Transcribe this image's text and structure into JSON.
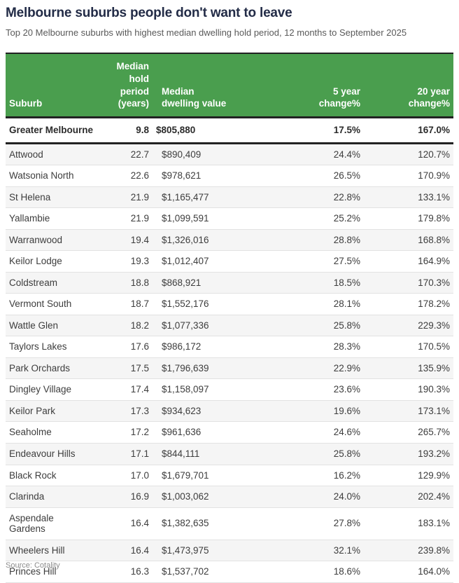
{
  "page": {
    "title": "Melbourne suburbs people don't want to leave",
    "subtitle": "Top 20 Melbourne suburbs with highest median dwelling hold period, 12 months to September 2025",
    "source": "Source: Cotality"
  },
  "colors": {
    "header_bg": "#4a9e4e",
    "header_text": "#ffffff",
    "title_text": "#232c47",
    "dark_rule": "#222222",
    "zebra_row_bg": "#f5f5f5",
    "row_separator": "#e2e2e2"
  },
  "table": {
    "headers": [
      "Suburb",
      "Median hold\nperiod\n(years)",
      "Median\ndwelling value",
      "5 year\nchange%",
      "20 year\nchange%"
    ],
    "summary": {
      "suburb": "Greater Melbourne",
      "hold": "9.8",
      "value": "$805,880",
      "change5": "17.5%",
      "change20": "167.0%"
    },
    "rows": [
      {
        "suburb": "Attwood",
        "hold": "22.7",
        "value": "$890,409",
        "change5": "24.4%",
        "change20": "120.7%"
      },
      {
        "suburb": "Watsonia North",
        "hold": "22.6",
        "value": "$978,621",
        "change5": "26.5%",
        "change20": "170.9%"
      },
      {
        "suburb": "St Helena",
        "hold": "21.9",
        "value": "$1,165,477",
        "change5": "22.8%",
        "change20": "133.1%"
      },
      {
        "suburb": "Yallambie",
        "hold": "21.9",
        "value": "$1,099,591",
        "change5": "25.2%",
        "change20": "179.8%"
      },
      {
        "suburb": "Warranwood",
        "hold": "19.4",
        "value": "$1,326,016",
        "change5": "28.8%",
        "change20": "168.8%"
      },
      {
        "suburb": "Keilor Lodge",
        "hold": "19.3",
        "value": "$1,012,407",
        "change5": "27.5%",
        "change20": "164.9%"
      },
      {
        "suburb": "Coldstream",
        "hold": "18.8",
        "value": "$868,921",
        "change5": "18.5%",
        "change20": "170.3%"
      },
      {
        "suburb": "Vermont South",
        "hold": "18.7",
        "value": "$1,552,176",
        "change5": "28.1%",
        "change20": "178.2%"
      },
      {
        "suburb": "Wattle Glen",
        "hold": "18.2",
        "value": "$1,077,336",
        "change5": "25.8%",
        "change20": "229.3%"
      },
      {
        "suburb": "Taylors Lakes",
        "hold": "17.6",
        "value": "$986,172",
        "change5": "28.3%",
        "change20": "170.5%"
      },
      {
        "suburb": "Park Orchards",
        "hold": "17.5",
        "value": "$1,796,639",
        "change5": "22.9%",
        "change20": "135.9%"
      },
      {
        "suburb": "Dingley Village",
        "hold": "17.4",
        "value": "$1,158,097",
        "change5": "23.6%",
        "change20": "190.3%"
      },
      {
        "suburb": "Keilor Park",
        "hold": "17.3",
        "value": "$934,623",
        "change5": "19.6%",
        "change20": "173.1%"
      },
      {
        "suburb": "Seaholme",
        "hold": "17.2",
        "value": "$961,636",
        "change5": "24.6%",
        "change20": "265.7%"
      },
      {
        "suburb": "Endeavour Hills",
        "hold": "17.1",
        "value": "$844,111",
        "change5": "25.8%",
        "change20": "193.2%"
      },
      {
        "suburb": "Black Rock",
        "hold": "17.0",
        "value": "$1,679,701",
        "change5": "16.2%",
        "change20": "129.9%"
      },
      {
        "suburb": "Clarinda",
        "hold": "16.9",
        "value": "$1,003,062",
        "change5": "24.0%",
        "change20": "202.4%"
      },
      {
        "suburb": "Aspendale\nGardens",
        "hold": "16.4",
        "value": "$1,382,635",
        "change5": "27.8%",
        "change20": "183.1%"
      },
      {
        "suburb": "Wheelers Hill",
        "hold": "16.4",
        "value": "$1,473,975",
        "change5": "32.1%",
        "change20": "239.8%"
      },
      {
        "suburb": "Princes Hill",
        "hold": "16.3",
        "value": "$1,537,702",
        "change5": "18.6%",
        "change20": "164.0%"
      }
    ]
  },
  "chart_data": {
    "type": "table",
    "title": "Melbourne suburbs people don't want to leave",
    "subtitle": "Top 20 Melbourne suburbs with highest median dwelling hold period, 12 months to September 2025",
    "columns": [
      "Suburb",
      "Median hold period (years)",
      "Median dwelling value",
      "5 year change%",
      "20 year change%"
    ],
    "rows": [
      [
        "Greater Melbourne",
        9.8,
        805880,
        17.5,
        167.0
      ],
      [
        "Attwood",
        22.7,
        890409,
        24.4,
        120.7
      ],
      [
        "Watsonia North",
        22.6,
        978621,
        26.5,
        170.9
      ],
      [
        "St Helena",
        21.9,
        1165477,
        22.8,
        133.1
      ],
      [
        "Yallambie",
        21.9,
        1099591,
        25.2,
        179.8
      ],
      [
        "Warranwood",
        19.4,
        1326016,
        28.8,
        168.8
      ],
      [
        "Keilor Lodge",
        19.3,
        1012407,
        27.5,
        164.9
      ],
      [
        "Coldstream",
        18.8,
        868921,
        18.5,
        170.3
      ],
      [
        "Vermont South",
        18.7,
        1552176,
        28.1,
        178.2
      ],
      [
        "Wattle Glen",
        18.2,
        1077336,
        25.8,
        229.3
      ],
      [
        "Taylors Lakes",
        17.6,
        986172,
        28.3,
        170.5
      ],
      [
        "Park Orchards",
        17.5,
        1796639,
        22.9,
        135.9
      ],
      [
        "Dingley Village",
        17.4,
        1158097,
        23.6,
        190.3
      ],
      [
        "Keilor Park",
        17.3,
        934623,
        19.6,
        173.1
      ],
      [
        "Seaholme",
        17.2,
        961636,
        24.6,
        265.7
      ],
      [
        "Endeavour Hills",
        17.1,
        844111,
        25.8,
        193.2
      ],
      [
        "Black Rock",
        17.0,
        1679701,
        16.2,
        129.9
      ],
      [
        "Clarinda",
        16.9,
        1003062,
        24.0,
        202.4
      ],
      [
        "Aspendale Gardens",
        16.4,
        1382635,
        27.8,
        183.1
      ],
      [
        "Wheelers Hill",
        16.4,
        1473975,
        32.1,
        239.8
      ],
      [
        "Princes Hill",
        16.3,
        1537702,
        18.6,
        164.0
      ]
    ],
    "source": "Source: Cotality"
  }
}
